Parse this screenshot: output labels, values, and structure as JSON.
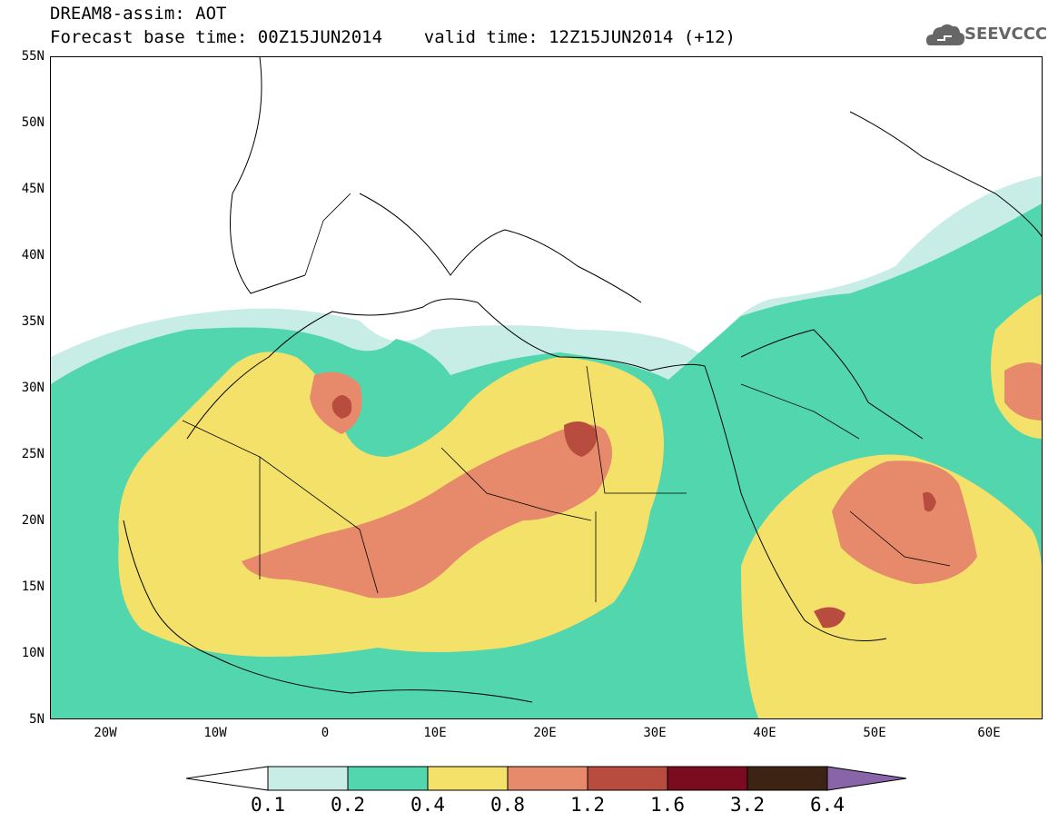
{
  "header": {
    "title_line1": "DREAM8-assim: AOT",
    "title_line2": "Forecast base time: 00Z15JUN2014    valid time: 12Z15JUN2014 (+12)",
    "logo_text": "SEEVCCC"
  },
  "map": {
    "lat_labels": [
      "55N",
      "50N",
      "45N",
      "40N",
      "35N",
      "30N",
      "25N",
      "20N",
      "15N",
      "10N",
      "5N"
    ],
    "lon_labels": [
      "20W",
      "10W",
      "0",
      "10E",
      "20E",
      "30E",
      "40E",
      "50E",
      "60E"
    ],
    "extent": {
      "lon_min": -25,
      "lon_max": 65,
      "lat_min": 5,
      "lat_max": 55
    }
  },
  "colorbar": {
    "labels": [
      "0.1",
      "0.2",
      "0.4",
      "0.8",
      "1.2",
      "1.6",
      "3.2",
      "6.4"
    ],
    "colors": [
      "#ffffff",
      "#c8ede6",
      "#52d6ad",
      "#f3e16a",
      "#e7896b",
      "#b84c3e",
      "#7b0c1f",
      "#3c2314",
      "#8a64a8"
    ]
  },
  "colors": {
    "c01": "#c8ede6",
    "c02": "#52d6ad",
    "c04": "#f3e16a",
    "c08": "#e7896b",
    "c12": "#b84c3e",
    "c16": "#7b0c1f",
    "c32": "#3c2314",
    "c64": "#8a64a8",
    "logo": "#666666"
  }
}
